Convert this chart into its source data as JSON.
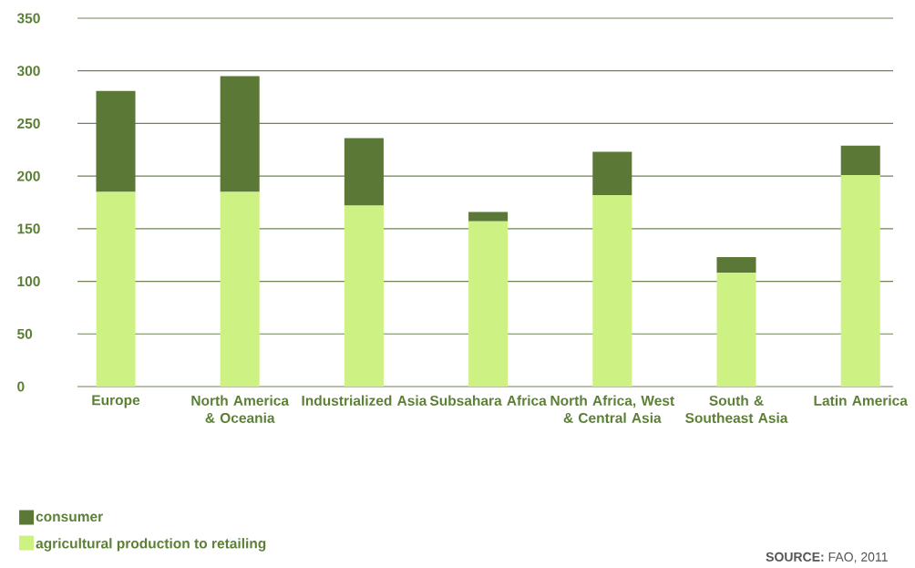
{
  "chart_data": {
    "type": "bar",
    "stacked": true,
    "categories": [
      "Europe",
      "North America & Oceania",
      "Industrialized Asia",
      "Subsahara Africa",
      "North Africa, West & Central Asia",
      "South & Southeast Asia",
      "Latin America"
    ],
    "series": [
      {
        "name": "agricultural production to retailing",
        "color": "#cdf283",
        "values": [
          185,
          185,
          172,
          157,
          182,
          108,
          201
        ]
      },
      {
        "name": "consumer",
        "color": "#5b7836",
        "values": [
          96,
          110,
          64,
          9,
          41,
          15,
          28
        ]
      }
    ],
    "ylim": [
      0,
      350
    ],
    "yticks": [
      0,
      50,
      100,
      150,
      200,
      250,
      300,
      350
    ],
    "grid": "y",
    "legend": "bottom left",
    "annotations": [
      "**SOURCE:** FAO, 2011"
    ]
  }
}
